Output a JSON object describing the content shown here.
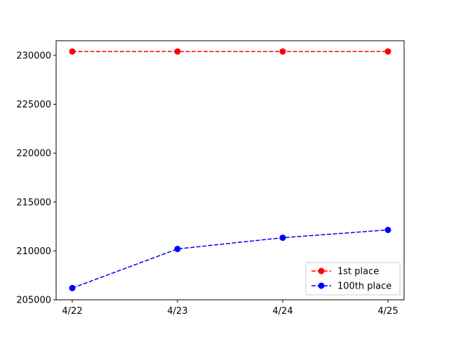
{
  "chart_data": {
    "type": "line",
    "title": "",
    "xlabel": "",
    "ylabel": "",
    "categories": [
      "4/22",
      "4/23",
      "4/24",
      "4/25"
    ],
    "ylim": [
      205000,
      231500
    ],
    "yticks": [
      205000,
      210000,
      215000,
      220000,
      225000,
      230000
    ],
    "grid": false,
    "legend_position": "lower-right",
    "series": [
      {
        "name": "1st place",
        "color": "#ff0000",
        "line_style": "dashed",
        "marker": "circle",
        "values": [
          230400,
          230400,
          230400,
          230400
        ]
      },
      {
        "name": "100th place",
        "color": "#0000ff",
        "line_style": "dashed",
        "marker": "circle",
        "values": [
          206200,
          210200,
          211350,
          212150
        ]
      }
    ]
  }
}
